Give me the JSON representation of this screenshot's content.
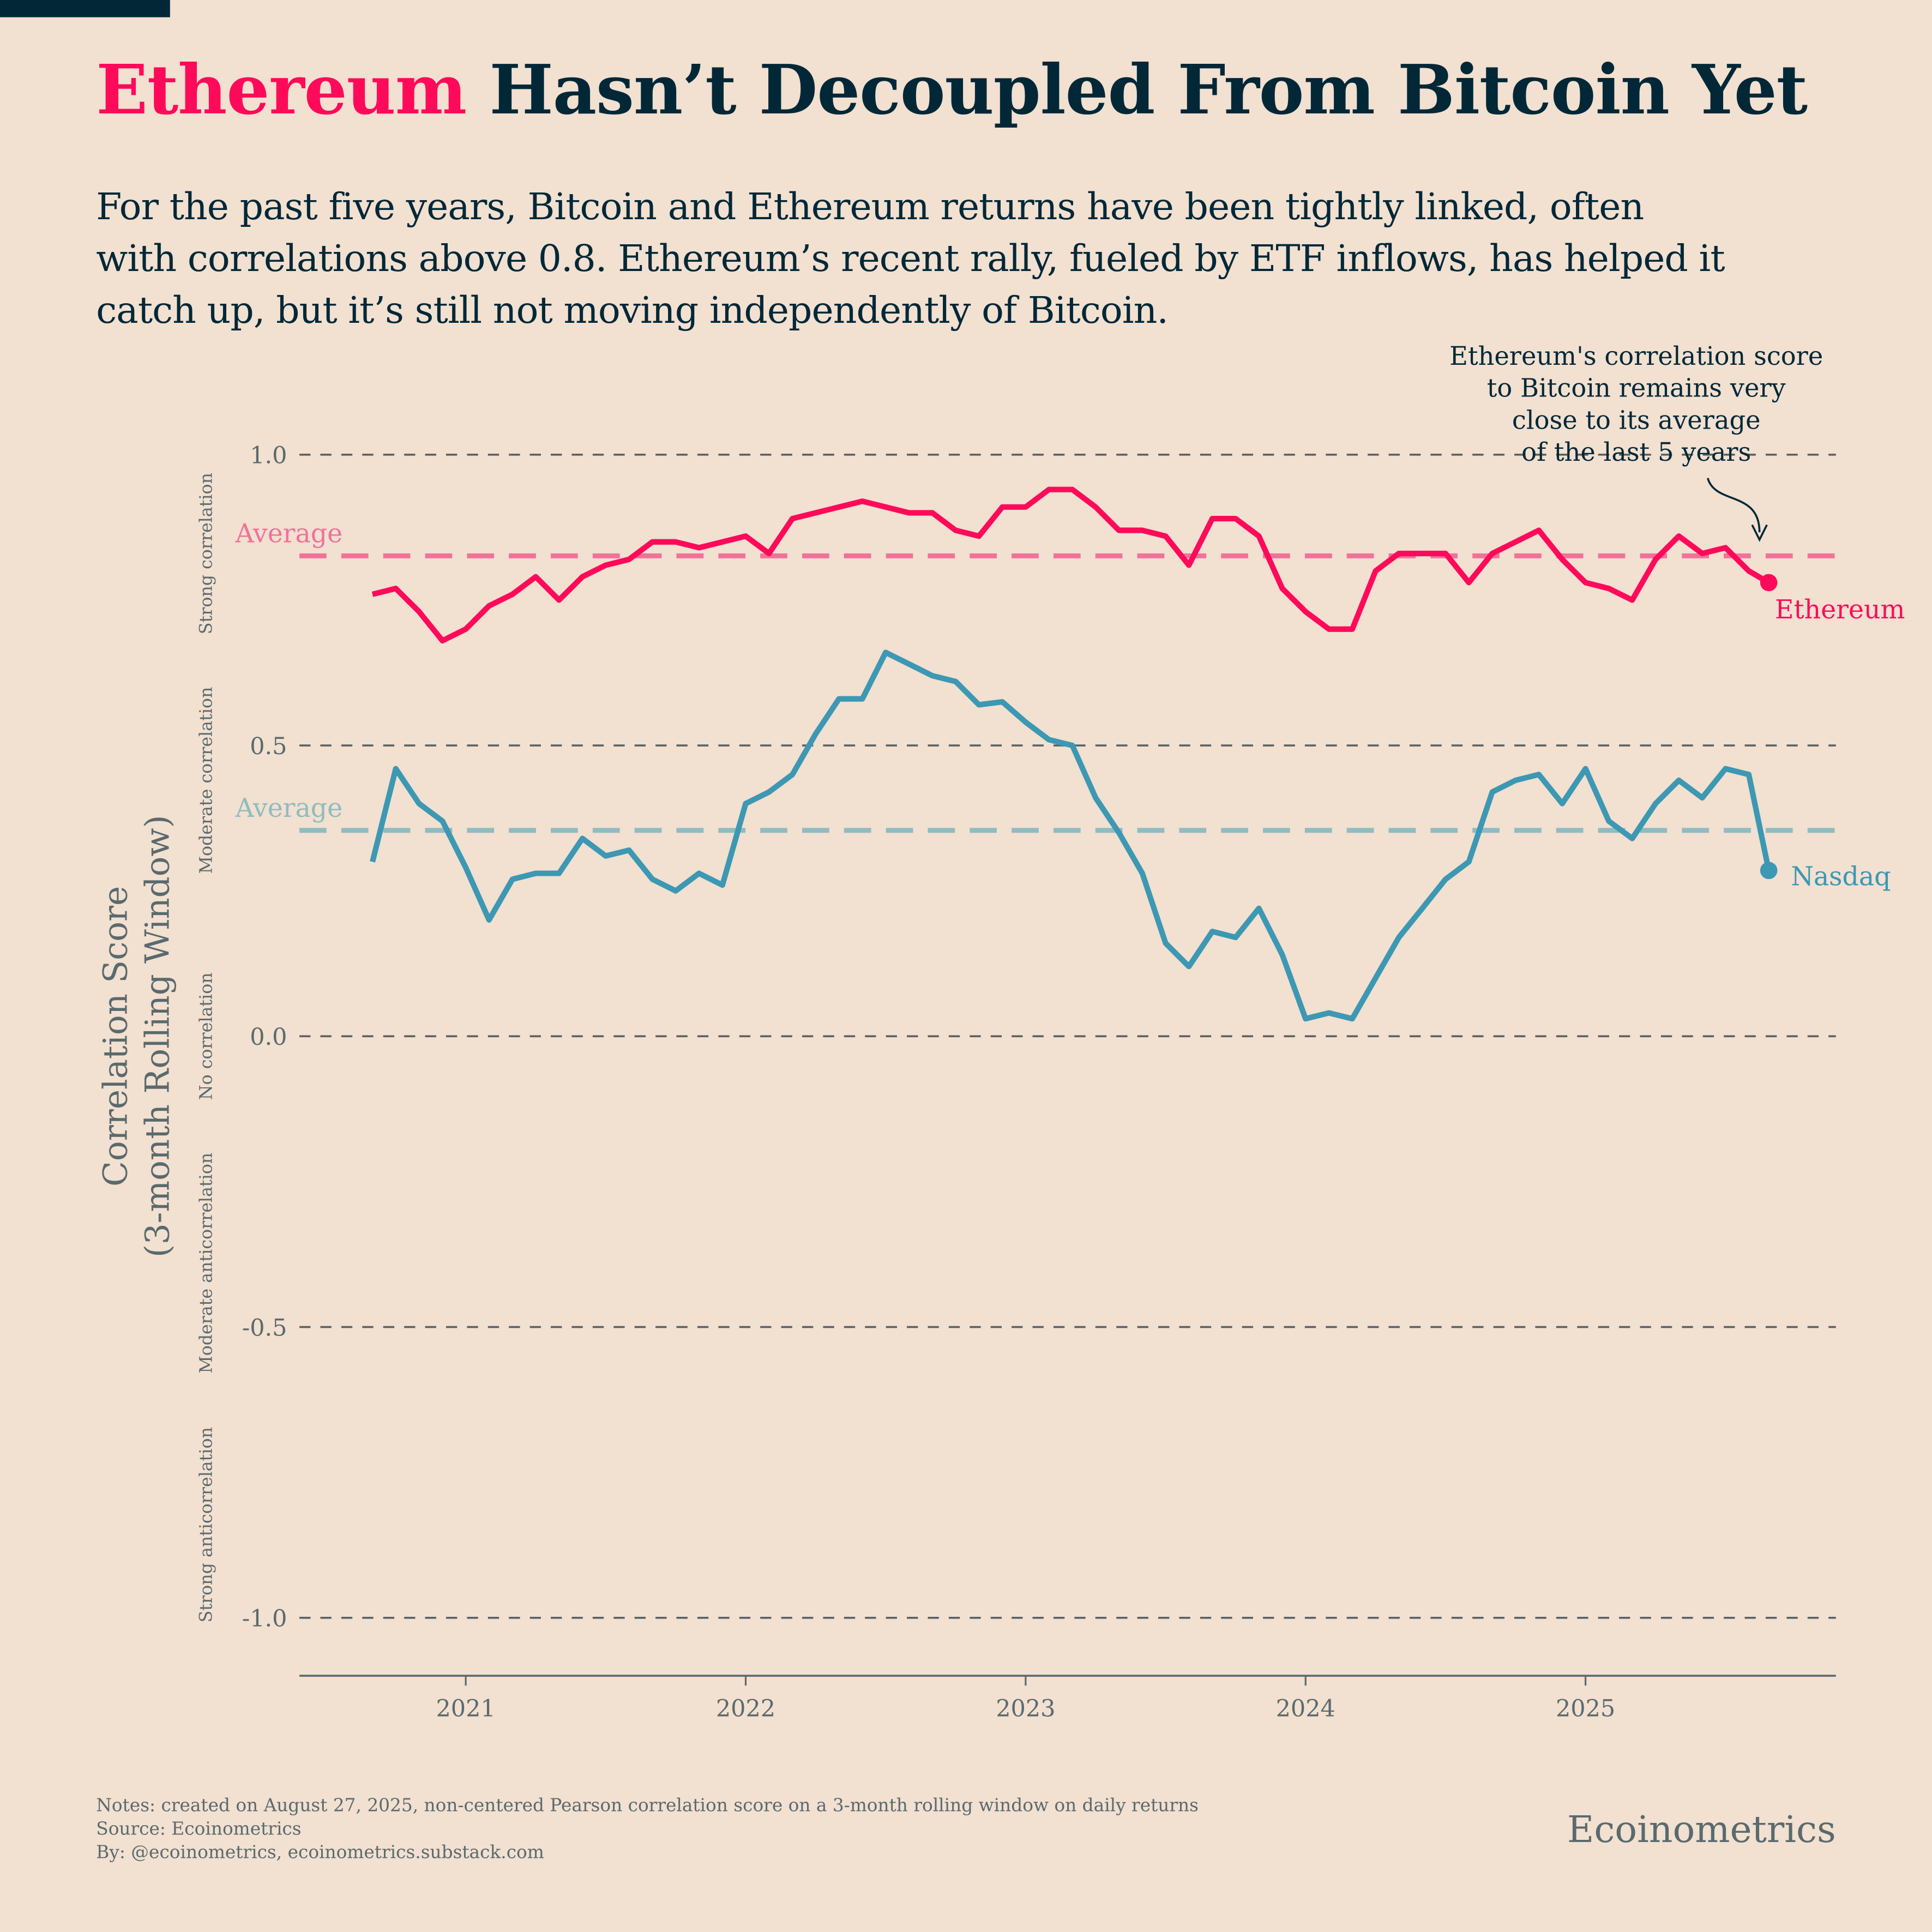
{
  "header": {
    "title_highlight": "Ethereum",
    "title_rest": " Hasn’t Decoupled From Bitcoin Yet",
    "subtitle": "For the past five years, Bitcoin and Ethereum returns have been tightly linked, often with correlations above 0.8. Ethereum’s recent rally, fueled by ETF inflows, has helped it catch up, but it’s still not moving independently of Bitcoin."
  },
  "footer": {
    "notes": "Notes: created on August 27, 2025, non-centered Pearson correlation score on a 3-month rolling window on daily returns",
    "source": "Source: Ecoinometrics",
    "by": "By: @ecoinometrics, ecoinometrics.substack.com",
    "brand": "Ecoinometrics"
  },
  "colors": {
    "background": "#f2e0d0",
    "ethereum": "#ff0a5a",
    "nasdaq": "#3c98b3",
    "ethereum_average": "#f0729a",
    "nasdaq_average": "#8fbcc0",
    "text_dark": "#022838",
    "text_grey": "#5a6a6e"
  },
  "chart_data": {
    "type": "line",
    "ylabel_line1": "Correlation Score",
    "ylabel_line2": "(3-month Rolling Window)",
    "ylim": [
      -1.1,
      1.1
    ],
    "yticks": [
      "1.0",
      "0.5",
      "0.0",
      "-0.5",
      "-1.0"
    ],
    "ytick_values": [
      1.0,
      0.5,
      0.0,
      -0.5,
      -1.0
    ],
    "xticks": [
      "2021",
      "2022",
      "2023",
      "2024",
      "2025"
    ],
    "grid": "horizontal dashed",
    "zones": [
      {
        "label": "Strong correlation",
        "center": 0.83
      },
      {
        "label": "Moderate correlation",
        "center": 0.44
      },
      {
        "label": "No correlation",
        "center": 0.0
      },
      {
        "label": "Moderate anticorrelation",
        "center": -0.39
      },
      {
        "label": "Strong anticorrelation",
        "center": -0.84
      }
    ],
    "x": [
      "2020-09",
      "2020-10",
      "2020-11",
      "2020-12",
      "2021-01",
      "2021-02",
      "2021-03",
      "2021-04",
      "2021-05",
      "2021-06",
      "2021-07",
      "2021-08",
      "2021-09",
      "2021-10",
      "2021-11",
      "2021-12",
      "2022-01",
      "2022-02",
      "2022-03",
      "2022-04",
      "2022-05",
      "2022-06",
      "2022-07",
      "2022-08",
      "2022-09",
      "2022-10",
      "2022-11",
      "2022-12",
      "2023-01",
      "2023-02",
      "2023-03",
      "2023-04",
      "2023-05",
      "2023-06",
      "2023-07",
      "2023-08",
      "2023-09",
      "2023-10",
      "2023-11",
      "2023-12",
      "2024-01",
      "2024-02",
      "2024-03",
      "2024-04",
      "2024-05",
      "2024-06",
      "2024-07",
      "2024-08",
      "2024-09",
      "2024-10",
      "2024-11",
      "2024-12",
      "2025-01",
      "2025-02",
      "2025-03",
      "2025-04",
      "2025-05",
      "2025-06",
      "2025-07",
      "2025-08",
      "2025-08-27"
    ],
    "series": [
      {
        "name": "Ethereum",
        "values": [
          0.76,
          0.77,
          0.73,
          0.68,
          0.7,
          0.74,
          0.76,
          0.79,
          0.75,
          0.79,
          0.81,
          0.82,
          0.85,
          0.85,
          0.84,
          0.85,
          0.86,
          0.83,
          0.89,
          0.9,
          0.91,
          0.92,
          0.91,
          0.9,
          0.9,
          0.87,
          0.86,
          0.91,
          0.91,
          0.94,
          0.94,
          0.91,
          0.87,
          0.87,
          0.86,
          0.81,
          0.89,
          0.89,
          0.86,
          0.77,
          0.73,
          0.7,
          0.7,
          0.8,
          0.83,
          0.83,
          0.83,
          0.78,
          0.83,
          0.85,
          0.87,
          0.82,
          0.78,
          0.77,
          0.75,
          0.82,
          0.86,
          0.83,
          0.84,
          0.8,
          0.78
        ],
        "average": 0.826,
        "average_label": "Average"
      },
      {
        "name": "Nasdaq",
        "values": [
          0.3,
          0.46,
          0.4,
          0.37,
          0.29,
          0.2,
          0.27,
          0.28,
          0.28,
          0.34,
          0.31,
          0.32,
          0.27,
          0.25,
          0.28,
          0.26,
          0.4,
          0.42,
          0.45,
          0.52,
          0.58,
          0.58,
          0.66,
          0.64,
          0.62,
          0.61,
          0.57,
          0.575,
          0.54,
          0.51,
          0.5,
          0.41,
          0.35,
          0.28,
          0.16,
          0.12,
          0.18,
          0.17,
          0.22,
          0.14,
          0.03,
          0.04,
          0.03,
          0.1,
          0.17,
          0.22,
          0.27,
          0.3,
          0.42,
          0.44,
          0.45,
          0.4,
          0.46,
          0.37,
          0.34,
          0.4,
          0.44,
          0.41,
          0.46,
          0.45,
          0.285
        ],
        "average": 0.354,
        "average_label": "Average"
      }
    ],
    "annotation": "Ethereum's correlation score to Bitcoin remains very close to its average of the last 5 years",
    "annotation_lines": [
      "Ethereum's correlation score",
      "to Bitcoin remains very",
      "close to its average",
      "of the last 5 years"
    ]
  }
}
